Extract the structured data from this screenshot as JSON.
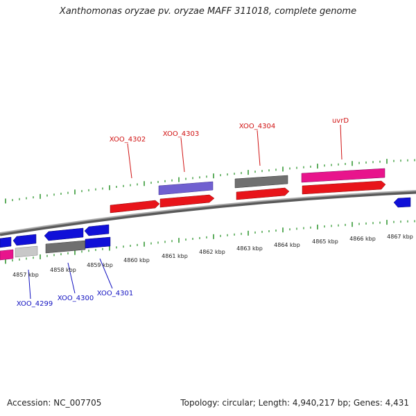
{
  "header": {
    "title": "Xanthomonas oryzae pv. oryzae MAFF 311018, complete genome"
  },
  "footer": {
    "accession": "Accession: NC_007705",
    "summary": "Topology: circular; Length: 4,940,217 bp; Genes: 4,431"
  },
  "colors": {
    "red": "#e8141a",
    "blue": "#1010d8",
    "pink": "#e8148c",
    "gray": "#707070",
    "lightgray": "#c8c8c8",
    "purple": "#7060d0",
    "tick": "#1a8c1a",
    "upper_label": "#d01010",
    "lower_label": "#1010c0"
  },
  "ruler": {
    "labels": [
      {
        "text": "4857 kbp"
      },
      {
        "text": "4858 kbp"
      },
      {
        "text": "4859 kbp"
      },
      {
        "text": "4860 kbp"
      },
      {
        "text": "4861 kbp"
      },
      {
        "text": "4862 kbp"
      },
      {
        "text": "4863 kbp"
      },
      {
        "text": "4864 kbp"
      },
      {
        "text": "4865 kbp"
      },
      {
        "text": "4866 kbp"
      },
      {
        "text": "4867 kbp"
      }
    ]
  },
  "labels_upper": [
    {
      "text": "XOO_4302"
    },
    {
      "text": "XOO_4303"
    },
    {
      "text": "XOO_4304"
    },
    {
      "text": "uvrD"
    }
  ],
  "labels_lower": [
    {
      "text": "XOO_4299"
    },
    {
      "text": "XOO_4300"
    },
    {
      "text": "XOO_4301"
    }
  ]
}
